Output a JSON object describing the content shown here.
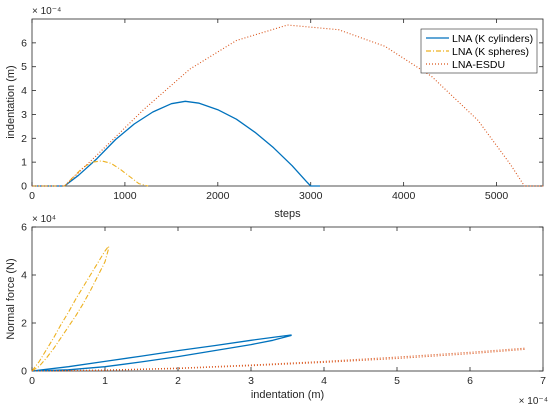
{
  "chart_data": [
    {
      "type": "line",
      "xlabel": "steps",
      "ylabel": "indentation (m)",
      "y_exponent_label": "× 10⁻⁴",
      "xlim": [
        0,
        5500
      ],
      "ylim": [
        0,
        7
      ],
      "xticks": [
        0,
        1000,
        2000,
        3000,
        4000,
        5000
      ],
      "xtick_labels": [
        "0",
        "1000",
        "2000",
        "3000",
        "4000",
        "5000"
      ],
      "yticks": [
        0,
        1,
        2,
        3,
        4,
        5,
        6
      ],
      "ytick_labels": [
        "0",
        "1",
        "2",
        "3",
        "4",
        "5",
        "6"
      ],
      "legend_position": "top-right",
      "grid": false,
      "series": [
        {
          "name": "LNA (K cylinders)",
          "color": "#0072BD",
          "style": "solid",
          "x": [
            0,
            350,
            500,
            700,
            900,
            1100,
            1300,
            1500,
            1650,
            1800,
            2000,
            2200,
            2400,
            2600,
            2800,
            2950,
            3000,
            3100
          ],
          "y": [
            0,
            0,
            0.45,
            1.15,
            1.95,
            2.6,
            3.1,
            3.45,
            3.55,
            3.47,
            3.2,
            2.8,
            2.25,
            1.6,
            0.85,
            0.2,
            0,
            0
          ]
        },
        {
          "name": "LNA (K spheres)",
          "color": "#EDB120",
          "style": "dash-dot",
          "x": [
            0,
            350,
            450,
            550,
            650,
            750,
            850,
            950,
            1050,
            1150,
            1250
          ],
          "y": [
            0,
            0,
            0.4,
            0.78,
            1.0,
            1.05,
            0.95,
            0.7,
            0.4,
            0.1,
            0
          ]
        },
        {
          "name": "LNA-ESDU",
          "color": "#D95319",
          "style": "dotted",
          "x": [
            0,
            350,
            700,
            1200,
            1700,
            2200,
            2750,
            3300,
            3800,
            4300,
            4800,
            5150,
            5300,
            5500
          ],
          "y": [
            0,
            0,
            1.3,
            3.2,
            4.9,
            6.1,
            6.75,
            6.55,
            5.85,
            4.6,
            2.75,
            0.9,
            0,
            0
          ]
        }
      ]
    },
    {
      "type": "line",
      "xlabel": "indentation (m)",
      "ylabel": "Normal force (N)",
      "x_exponent_label": "× 10⁻⁴",
      "y_exponent_label": "× 10⁴",
      "xlim": [
        0,
        7
      ],
      "ylim": [
        0,
        6
      ],
      "xticks": [
        0,
        1,
        2,
        3,
        4,
        5,
        6,
        7
      ],
      "xtick_labels": [
        "0",
        "1",
        "2",
        "3",
        "4",
        "5",
        "6",
        "7"
      ],
      "yticks": [
        0,
        2,
        4,
        6
      ],
      "ytick_labels": [
        "0",
        "2",
        "4",
        "6"
      ],
      "grid": false,
      "series": [
        {
          "name": "LNA (K cylinders)",
          "color": "#0072BD",
          "style": "solid",
          "x": [
            0,
            0.5,
            1,
            1.5,
            2,
            2.5,
            3,
            3.35,
            3.55,
            3.55,
            3.3,
            3,
            2.5,
            2,
            1.5,
            1,
            0.5,
            0
          ],
          "y": [
            0,
            0.18,
            0.4,
            0.62,
            0.85,
            1.06,
            1.28,
            1.42,
            1.5,
            1.48,
            1.28,
            1.1,
            0.85,
            0.6,
            0.38,
            0.18,
            0.05,
            0
          ]
        },
        {
          "name": "LNA (K spheres)",
          "color": "#EDB120",
          "style": "dash-dot",
          "x": [
            0,
            0.1,
            0.2,
            0.3,
            0.4,
            0.5,
            0.6,
            0.7,
            0.8,
            0.9,
            1.0,
            1.05,
            1.05,
            1.0,
            0.9,
            0.8,
            0.7,
            0.6,
            0.5,
            0.4,
            0.3,
            0.2,
            0.1,
            0
          ],
          "y": [
            0,
            0.4,
            0.9,
            1.4,
            1.95,
            2.45,
            3.0,
            3.5,
            4.0,
            4.5,
            5.0,
            5.2,
            5.1,
            4.55,
            3.95,
            3.35,
            2.8,
            2.3,
            1.85,
            1.4,
            0.95,
            0.55,
            0.2,
            0
          ]
        },
        {
          "name": "LNA-ESDU",
          "color": "#D95319",
          "style": "dotted",
          "x": [
            0,
            1,
            2,
            3,
            4,
            5,
            6,
            6.75,
            6.75,
            6,
            5,
            4,
            3,
            2,
            1,
            0
          ],
          "y": [
            0,
            0.04,
            0.12,
            0.25,
            0.4,
            0.58,
            0.78,
            0.95,
            0.9,
            0.72,
            0.52,
            0.36,
            0.22,
            0.1,
            0.03,
            0
          ]
        }
      ]
    }
  ]
}
